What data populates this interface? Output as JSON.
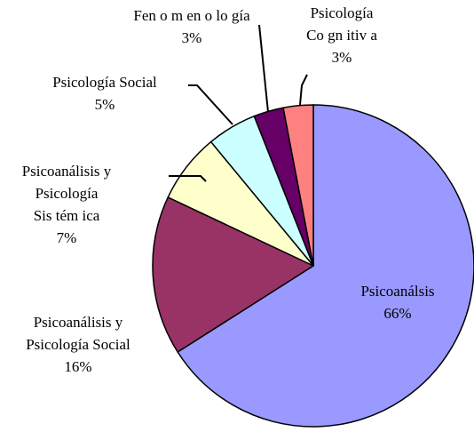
{
  "chart_data": {
    "type": "pie",
    "categories": [
      "Psicoanálsis",
      "Psicoanálisis y\nPsicología Social",
      "Psicoanálisis y\nPsicología\nSis tém ica",
      "Psicología Social",
      "Fen o m en o lo gía",
      "Psicología\nCo gn itiv a"
    ],
    "values": [
      66,
      16,
      7,
      5,
      3,
      3
    ],
    "value_labels": [
      "66%",
      "16%",
      "7%",
      "5%",
      "3%",
      "3%"
    ],
    "colors": [
      "#9999ff",
      "#993366",
      "#ffffcc",
      "#ccffff",
      "#660066",
      "#ff8080"
    ]
  }
}
